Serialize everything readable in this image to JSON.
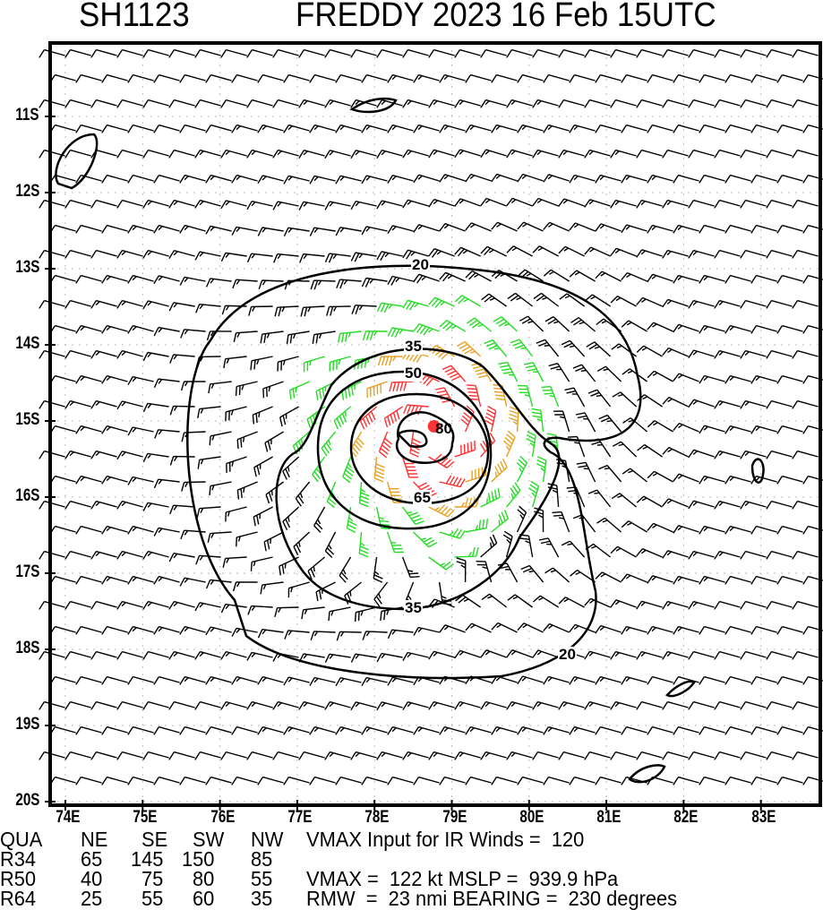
{
  "header": {
    "storm_id": "SH1123",
    "title": "FREDDY 2023 16 Feb 15UTC"
  },
  "chart_data": {
    "type": "wind_field_map",
    "title": "FREDDY 2023 16 Feb 15UTC",
    "x_ticks": [
      "74E",
      "75E",
      "76E",
      "77E",
      "78E",
      "79E",
      "80E",
      "81E",
      "82E",
      "83E"
    ],
    "y_ticks": [
      "11S",
      "12S",
      "13S",
      "14S",
      "15S",
      "16S",
      "17S",
      "18S",
      "19S",
      "20S"
    ],
    "lon_range": [
      73.8,
      83.77
    ],
    "lat_range": [
      -20.05,
      -10.04
    ],
    "center": {
      "lon": 78.77,
      "lat": -15.07
    },
    "contour_levels_kt": [
      20,
      35,
      50,
      65,
      80
    ],
    "contour_labels": [
      "20",
      "20",
      "35",
      "35",
      "50",
      "65",
      "80"
    ],
    "barb_colors": {
      "below34": "#000000",
      "34to50": "#22dd22",
      "50to64": "#e8a020",
      "64plus": "#ff3030",
      "center": "#ff3333",
      "inner": "#a0a0a0"
    }
  },
  "table": {
    "headers": [
      "QUA",
      "NE",
      "SE",
      "SW",
      "NW"
    ],
    "rows": [
      {
        "label": "R34",
        "values": [
          "65",
          "145",
          "150",
          "85"
        ]
      },
      {
        "label": "R50",
        "values": [
          "40",
          "75",
          "80",
          "55"
        ]
      },
      {
        "label": "R64",
        "values": [
          "25",
          "55",
          "60",
          "35"
        ]
      }
    ]
  },
  "info": {
    "vmax_input": "VMAX Input for IR Winds =  120",
    "vmax_mslp": "VMAX =  122 kt MSLP =  939.9 hPa",
    "rmw_bearing": "RMW  =  23 nmi BEARING =  230 degrees"
  }
}
